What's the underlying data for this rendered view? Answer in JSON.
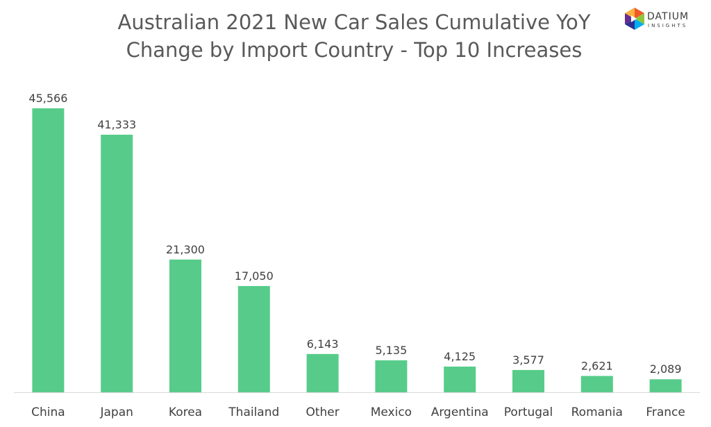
{
  "logo": {
    "word": "DATIUM",
    "sub": "INSIGHTS"
  },
  "colors": {
    "bar": "#57CC8A",
    "axis": "#D9D9D9",
    "text": "#404040",
    "title": "#595959"
  },
  "chart_data": {
    "type": "bar",
    "title_line1": "Australian 2021 New Car Sales Cumulative YoY",
    "title_line2": "Change by Import Country - Top 10 Increases",
    "categories": [
      "China",
      "Japan",
      "Korea",
      "Thailand",
      "Other",
      "Mexico",
      "Argentina",
      "Portugal",
      "Romania",
      "France"
    ],
    "values": [
      45566,
      41333,
      21300,
      17050,
      6143,
      5135,
      4125,
      3577,
      2621,
      2089
    ],
    "value_labels": [
      "45,566",
      "41,333",
      "21,300",
      "17,050",
      "6,143",
      "5,135",
      "4,125",
      "3,577",
      "2,621",
      "2,089"
    ],
    "ylim": [
      0,
      45566
    ],
    "grid": false,
    "legend": "none"
  }
}
